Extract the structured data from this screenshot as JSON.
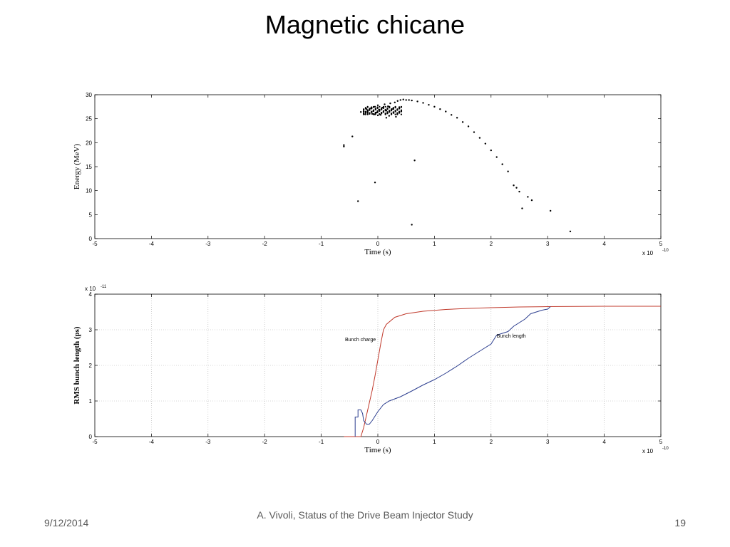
{
  "slide": {
    "title": "Magnetic chicane"
  },
  "footer": {
    "date": "9/12/2014",
    "text": "A. Vivoli, Status of the Drive Beam Injector Study",
    "page": "19"
  },
  "colors": {
    "charge_line": "#c0392b",
    "length_line": "#2c3e8f",
    "points": "#000000",
    "grid": "#b0b0b0"
  },
  "chart_data": [
    {
      "type": "scatter",
      "xlabel": "Time (s)",
      "ylabel": "Energy (MeV)",
      "x_exponent": "x 10",
      "x_exponent_power": "-10",
      "xlim": [
        -5,
        5
      ],
      "ylim": [
        0,
        30
      ],
      "xticks": [
        "-5",
        "-4",
        "-3",
        "-2",
        "-1",
        "0",
        "1",
        "2",
        "3",
        "4",
        "5"
      ],
      "yticks": [
        "0",
        "5",
        "10",
        "15",
        "20",
        "25",
        "30"
      ],
      "grid": false,
      "series": [
        {
          "points": [
            [
              -0.6,
              19.5
            ],
            [
              -0.6,
              19.2
            ],
            [
              -0.45,
              21.3
            ],
            [
              -0.35,
              7.8
            ],
            [
              -0.05,
              11.7
            ],
            [
              0.6,
              2.9
            ],
            [
              0.65,
              16.3
            ],
            [
              -0.25,
              26.5
            ],
            [
              -0.2,
              27.0
            ],
            [
              -0.18,
              26.2
            ],
            [
              -0.15,
              26.8
            ],
            [
              -0.12,
              27.2
            ],
            [
              -0.1,
              26.0
            ],
            [
              -0.08,
              26.6
            ],
            [
              -0.05,
              27.5
            ],
            [
              -0.02,
              26.3
            ],
            [
              0.0,
              27.8
            ],
            [
              0.02,
              26.9
            ],
            [
              0.05,
              25.8
            ],
            [
              0.08,
              27.3
            ],
            [
              0.1,
              26.4
            ],
            [
              0.12,
              28.0
            ],
            [
              0.15,
              26.7
            ],
            [
              0.18,
              27.6
            ],
            [
              0.2,
              25.6
            ],
            [
              0.22,
              28.2
            ],
            [
              0.25,
              27.0
            ],
            [
              0.28,
              26.2
            ],
            [
              0.3,
              28.4
            ],
            [
              0.32,
              25.4
            ],
            [
              0.35,
              28.7
            ],
            [
              0.38,
              27.4
            ],
            [
              0.4,
              28.9
            ],
            [
              0.45,
              29.0
            ],
            [
              0.5,
              28.9
            ],
            [
              0.55,
              28.9
            ],
            [
              0.6,
              28.8
            ],
            [
              0.7,
              28.6
            ],
            [
              0.8,
              28.3
            ],
            [
              0.9,
              27.9
            ],
            [
              1.0,
              27.5
            ],
            [
              1.1,
              27.0
            ],
            [
              1.2,
              26.5
            ],
            [
              1.3,
              25.8
            ],
            [
              1.4,
              25.2
            ],
            [
              1.5,
              24.3
            ],
            [
              1.6,
              23.4
            ],
            [
              1.7,
              22.2
            ],
            [
              1.8,
              21.0
            ],
            [
              1.9,
              19.8
            ],
            [
              2.0,
              18.4
            ],
            [
              2.1,
              17.0
            ],
            [
              2.2,
              15.5
            ],
            [
              2.3,
              14.0
            ],
            [
              2.4,
              11.1
            ],
            [
              2.45,
              10.6
            ],
            [
              2.5,
              9.8
            ],
            [
              2.55,
              6.3
            ],
            [
              2.65,
              8.7
            ],
            [
              2.72,
              8.0
            ],
            [
              3.05,
              5.8
            ],
            [
              3.4,
              1.5
            ],
            [
              -0.3,
              26.4
            ],
            [
              -0.22,
              25.9
            ],
            [
              0.15,
              25.2
            ],
            [
              0.0,
              25.7
            ],
            [
              -0.05,
              25.9
            ]
          ]
        }
      ]
    },
    {
      "type": "line",
      "xlabel": "Time (s)",
      "ylabel": "RMS bunch length (ps)",
      "x_exponent": "x 10",
      "x_exponent_power": "-10",
      "y_exponent": "x 10",
      "y_exponent_power": "-11",
      "xlim": [
        -5,
        5
      ],
      "ylim": [
        0,
        4
      ],
      "xticks": [
        "-5",
        "-4",
        "-3",
        "-2",
        "-1",
        "0",
        "1",
        "2",
        "3",
        "4",
        "5"
      ],
      "yticks": [
        "0",
        "1",
        "2",
        "3",
        "4"
      ],
      "grid": true,
      "annotations": [
        "Bunch charge",
        "Bunch length"
      ],
      "series": [
        {
          "name": "Bunch charge",
          "points": [
            [
              -0.6,
              0.0
            ],
            [
              -0.3,
              0.0
            ],
            [
              -0.25,
              0.25
            ],
            [
              -0.2,
              0.6
            ],
            [
              -0.15,
              0.95
            ],
            [
              -0.1,
              1.3
            ],
            [
              -0.05,
              1.7
            ],
            [
              0.0,
              2.15
            ],
            [
              0.05,
              2.6
            ],
            [
              0.1,
              3.0
            ],
            [
              0.15,
              3.15
            ],
            [
              0.3,
              3.35
            ],
            [
              0.5,
              3.45
            ],
            [
              0.8,
              3.52
            ],
            [
              1.2,
              3.57
            ],
            [
              1.6,
              3.6
            ],
            [
              2.0,
              3.62
            ],
            [
              2.5,
              3.64
            ],
            [
              3.0,
              3.65
            ],
            [
              4.0,
              3.66
            ],
            [
              5.0,
              3.66
            ]
          ]
        },
        {
          "name": "Bunch length",
          "points": [
            [
              -0.4,
              0.0
            ],
            [
              -0.4,
              0.55
            ],
            [
              -0.35,
              0.55
            ],
            [
              -0.35,
              0.75
            ],
            [
              -0.3,
              0.75
            ],
            [
              -0.27,
              0.65
            ],
            [
              -0.25,
              0.45
            ],
            [
              -0.2,
              0.35
            ],
            [
              -0.15,
              0.35
            ],
            [
              -0.1,
              0.45
            ],
            [
              0.0,
              0.7
            ],
            [
              0.1,
              0.9
            ],
            [
              0.2,
              1.0
            ],
            [
              0.4,
              1.12
            ],
            [
              0.6,
              1.28
            ],
            [
              0.8,
              1.45
            ],
            [
              1.0,
              1.6
            ],
            [
              1.2,
              1.78
            ],
            [
              1.4,
              1.98
            ],
            [
              1.6,
              2.2
            ],
            [
              1.8,
              2.4
            ],
            [
              2.0,
              2.6
            ],
            [
              2.1,
              2.85
            ],
            [
              2.3,
              2.95
            ],
            [
              2.4,
              3.1
            ],
            [
              2.6,
              3.3
            ],
            [
              2.7,
              3.45
            ],
            [
              2.9,
              3.55
            ],
            [
              3.0,
              3.58
            ],
            [
              3.05,
              3.65
            ]
          ]
        }
      ]
    }
  ]
}
